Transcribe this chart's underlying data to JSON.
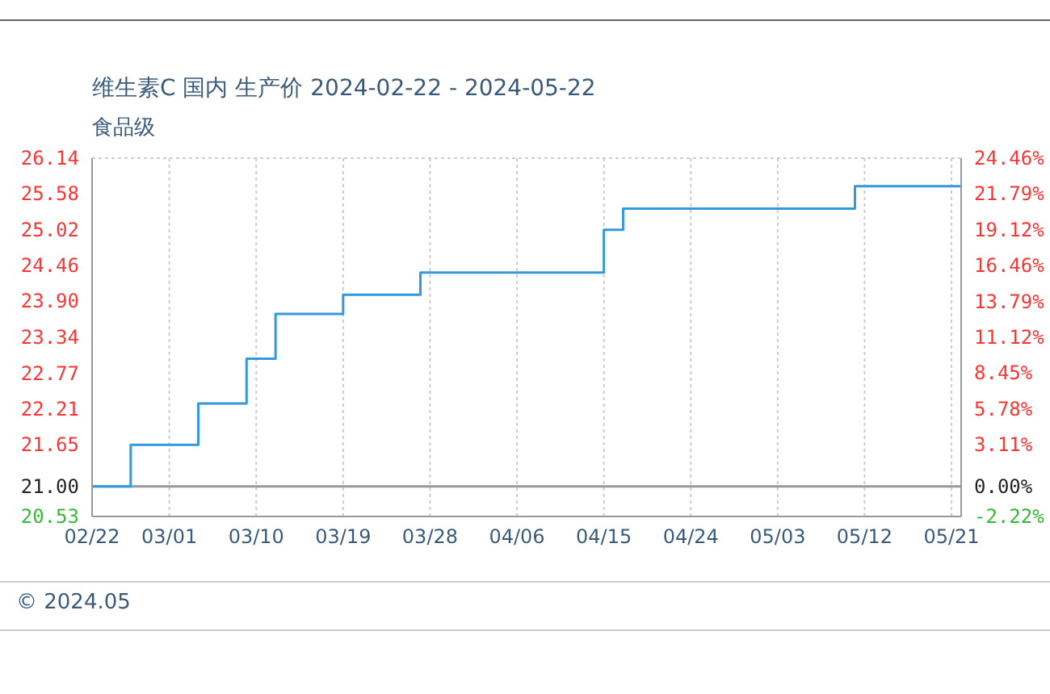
{
  "chart_data": {
    "type": "step",
    "title": "维生素C 国内 生产价 2024-02-22 - 2024-05-22",
    "subtitle": "食品级",
    "annotations": [
      "© 2024.05"
    ],
    "x": [
      "2024-02-22",
      "2024-02-26",
      "2024-03-04",
      "2024-03-09",
      "2024-03-12",
      "2024-03-19",
      "2024-03-27",
      "2024-04-15",
      "2024-04-17",
      "2024-05-11",
      "2024-05-22"
    ],
    "series": [
      {
        "color": "#3399dd",
        "values": [
          21.0,
          21.65,
          22.3,
          23.0,
          23.7,
          24.0,
          24.35,
          25.02,
          25.35,
          25.7,
          25.7
        ]
      }
    ],
    "xlim": [
      "2024-02-22",
      "2024-05-22"
    ],
    "xticks": [
      {
        "value": "2024-02-22",
        "label": "02/22"
      },
      {
        "value": "2024-03-01",
        "label": "03/01"
      },
      {
        "value": "2024-03-10",
        "label": "03/10"
      },
      {
        "value": "2024-03-19",
        "label": "03/19"
      },
      {
        "value": "2024-03-28",
        "label": "03/28"
      },
      {
        "value": "2024-04-06",
        "label": "04/06"
      },
      {
        "value": "2024-04-15",
        "label": "04/15"
      },
      {
        "value": "2024-04-24",
        "label": "04/24"
      },
      {
        "value": "2024-05-03",
        "label": "05/03"
      },
      {
        "value": "2024-05-12",
        "label": "05/12"
      },
      {
        "value": "2024-05-21",
        "label": "05/21"
      }
    ],
    "ylim": [
      20.53,
      26.14
    ],
    "yticks": [
      {
        "value": 20.53,
        "label": "20.53"
      },
      {
        "value": 21,
        "label": "21.00"
      },
      {
        "value": 21.65,
        "label": "21.65"
      },
      {
        "value": 22.21,
        "label": "22.21"
      },
      {
        "value": 22.77,
        "label": "22.77"
      },
      {
        "value": 23.34,
        "label": "23.34"
      },
      {
        "value": 23.9,
        "label": "23.90"
      },
      {
        "value": 24.46,
        "label": "24.46"
      },
      {
        "value": 25.02,
        "label": "25.02"
      },
      {
        "value": 25.58,
        "label": "25.58"
      },
      {
        "value": 26.14,
        "label": "26.14"
      }
    ],
    "y2lim": [
      -2.22,
      24.46
    ],
    "y2ticks": [
      {
        "value": -2.22,
        "label": "-2.22%"
      },
      {
        "value": 0,
        "label": "0.00%"
      },
      {
        "value": 3.11,
        "label": "3.11%"
      },
      {
        "value": 5.78,
        "label": "5.78%"
      },
      {
        "value": 8.45,
        "label": "8.45%"
      },
      {
        "value": 11.12,
        "label": "11.12%"
      },
      {
        "value": 13.79,
        "label": "13.79%"
      },
      {
        "value": 16.46,
        "label": "16.46%"
      },
      {
        "value": 19.12,
        "label": "19.12%"
      },
      {
        "value": 21.79,
        "label": "21.79%"
      },
      {
        "value": 24.46,
        "label": "24.46%"
      }
    ],
    "ref_lines": [
      {
        "axis": "y",
        "value": 21,
        "color": "#999999"
      }
    ],
    "grid": true,
    "marker": "none",
    "legend": false
  }
}
